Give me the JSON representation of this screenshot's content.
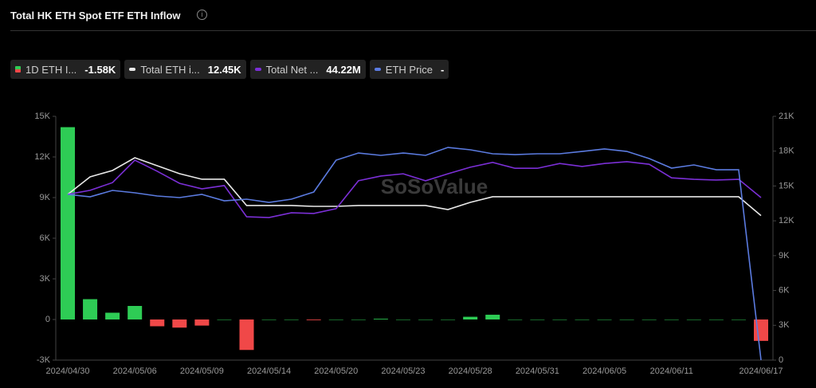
{
  "chart_data": {
    "type": "bar-line",
    "title": "Total HK ETH Spot ETF ETH Inflow",
    "watermark": "SoSoValue",
    "categories": [
      "2024/04/30",
      null,
      null,
      "2024/05/06",
      null,
      null,
      "2024/05/09",
      null,
      null,
      "2024/05/14",
      null,
      null,
      "2024/05/20",
      null,
      null,
      "2024/05/23",
      null,
      null,
      "2024/05/28",
      null,
      null,
      "2024/05/31",
      null,
      null,
      "2024/06/05",
      null,
      null,
      "2024/06/11",
      null,
      null,
      null,
      "2024/06/17"
    ],
    "ylim": [
      -3000,
      15000
    ],
    "yticks": [
      {
        "value": 15000,
        "label": "15K"
      },
      {
        "value": 12000,
        "label": "12K"
      },
      {
        "value": 9000,
        "label": "9K"
      },
      {
        "value": 6000,
        "label": "6K"
      },
      {
        "value": 3000,
        "label": "3K"
      },
      0,
      {
        "value": -3000,
        "label": "-3K"
      }
    ],
    "y2lim": [
      0,
      21000
    ],
    "y2ticks": [
      {
        "value": 21000,
        "label": "21K"
      },
      {
        "value": 18000,
        "label": "18K"
      },
      {
        "value": 15000,
        "label": "15K"
      },
      {
        "value": 12000,
        "label": "12K"
      },
      {
        "value": 9000,
        "label": "9K"
      },
      {
        "value": 6000,
        "label": "6K"
      },
      {
        "value": 3000,
        "label": "3K"
      },
      0
    ],
    "y3lim": [
      0,
      66340000
    ],
    "y4lim": [
      0,
      4428
    ],
    "grid": false,
    "series": [
      {
        "name": "1D ETH I...",
        "latest_label": "-1.58K",
        "type": "bar",
        "color": "#2ecc55",
        "negative_color": "#f04848",
        "values": [
          14200,
          1500,
          500,
          1000,
          -500,
          -600,
          -450,
          0,
          -2250,
          0,
          0,
          -50,
          0,
          0,
          50,
          0,
          0,
          0,
          200,
          350,
          0,
          0,
          0,
          0,
          0,
          0,
          0,
          0,
          0,
          0,
          0,
          -1580
        ]
      },
      {
        "name": "Total ETH i...",
        "latest_label": "12.45K",
        "type": "line",
        "axis": "y2",
        "color": "#e8e8e8",
        "values": [
          14275,
          15785,
          16335,
          17430,
          16745,
          16060,
          15580,
          15580,
          13315,
          13315,
          13315,
          13245,
          13245,
          13315,
          13315,
          13315,
          13315,
          12970,
          13590,
          14070,
          14070,
          14070,
          14070,
          14070,
          14070,
          14070,
          14070,
          14070,
          14070,
          14070,
          14070,
          12450
        ]
      },
      {
        "name": "Total Net ...",
        "latest_label": "44.22M",
        "type": "line",
        "axis": "y3",
        "color": "#7b2fd6",
        "values": [
          45100000,
          46200000,
          48300000,
          54400000,
          51400000,
          48100000,
          46600000,
          47500000,
          39000000,
          38800000,
          40100000,
          39900000,
          41200000,
          48800000,
          50100000,
          50700000,
          48800000,
          50700000,
          52500000,
          53800000,
          52200000,
          52200000,
          53500000,
          52700000,
          53500000,
          54000000,
          53300000,
          49600000,
          49200000,
          49000000,
          49200000,
          44220000
        ]
      },
      {
        "name": "ETH Price",
        "latest_label": "-",
        "type": "line",
        "axis": "y4",
        "color": "#5b7be0",
        "values": [
          3010,
          2966,
          3082,
          3039,
          2981,
          2952,
          3010,
          2894,
          2923,
          2865,
          2923,
          3053,
          3632,
          3762,
          3719,
          3762,
          3719,
          3863,
          3820,
          3748,
          3733,
          3748,
          3748,
          3791,
          3835,
          3791,
          3661,
          3487,
          3545,
          3458,
          3458,
          0
        ]
      }
    ]
  }
}
